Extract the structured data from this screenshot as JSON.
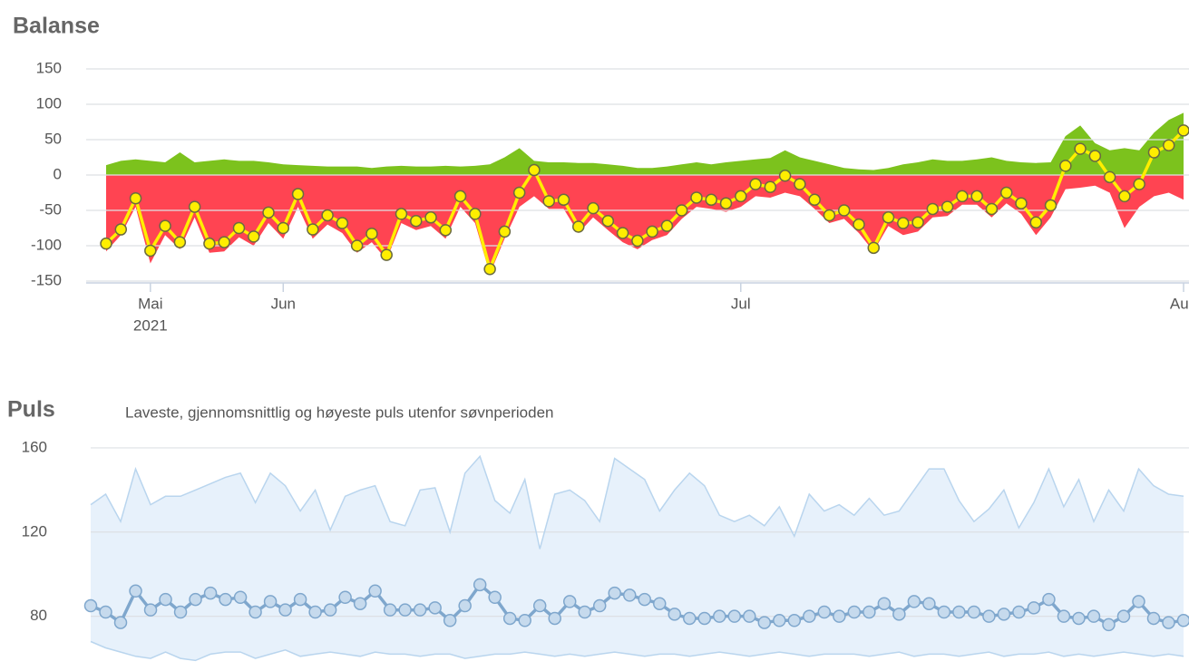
{
  "chart_data": [
    {
      "type": "area_line",
      "title": "Balanse",
      "categories": [
        null,
        null,
        null,
        "Mai",
        null,
        null,
        null,
        null,
        null,
        null,
        null,
        null,
        "Jun",
        null,
        null,
        null,
        null,
        null,
        null,
        null,
        null,
        null,
        null,
        null,
        null,
        null,
        null,
        null,
        null,
        null,
        null,
        null,
        null,
        null,
        null,
        null,
        null,
        null,
        null,
        null,
        null,
        null,
        null,
        "Jul",
        null,
        null,
        null,
        null,
        null,
        null,
        null,
        null,
        null,
        null,
        null,
        null,
        null,
        null,
        null,
        null,
        null,
        null,
        null,
        null,
        null,
        null,
        null,
        null,
        null,
        null,
        null,
        null,
        null,
        "Aug"
      ],
      "year_label": "2021",
      "ylim": [
        -150,
        150
      ],
      "yticks": [
        150,
        100,
        50,
        0,
        -50,
        -100,
        -150
      ],
      "grid": true,
      "areas": [
        {
          "color": "#7cc21d",
          "values": [
            14,
            20,
            22,
            20,
            18,
            32,
            18,
            20,
            22,
            20,
            20,
            18,
            15,
            14,
            13,
            12,
            12,
            12,
            10,
            12,
            13,
            12,
            12,
            13,
            12,
            13,
            15,
            25,
            38,
            20,
            18,
            18,
            17,
            17,
            15,
            13,
            10,
            10,
            12,
            15,
            18,
            15,
            18,
            20,
            22,
            24,
            35,
            25,
            20,
            15,
            10,
            8,
            7,
            10,
            15,
            18,
            22,
            20,
            20,
            22,
            25,
            20,
            18,
            17,
            18,
            55,
            70,
            45,
            35,
            38,
            35,
            60,
            78,
            88
          ]
        },
        {
          "color": "#ff4452",
          "values": [
            -108,
            -85,
            -45,
            -125,
            -85,
            -105,
            -60,
            -110,
            -108,
            -88,
            -100,
            -68,
            -90,
            -45,
            -90,
            -70,
            -82,
            -110,
            -95,
            -120,
            -68,
            -78,
            -72,
            -90,
            -45,
            -68,
            -140,
            -90,
            -45,
            -30,
            -48,
            -48,
            -82,
            -60,
            -78,
            -95,
            -105,
            -92,
            -85,
            -62,
            -45,
            -48,
            -52,
            -45,
            -30,
            -32,
            -25,
            -30,
            -48,
            -68,
            -62,
            -82,
            -108,
            -72,
            -85,
            -80,
            -60,
            -58,
            -42,
            -42,
            -60,
            -40,
            -55,
            -85,
            -60,
            -20,
            -18,
            -15,
            -25,
            -75,
            -45,
            -30,
            -25,
            -35
          ]
        }
      ],
      "series": [
        {
          "color": "#ffee00",
          "values": [
            -97,
            -77,
            -33,
            -107,
            -72,
            -95,
            -45,
            -97,
            -95,
            -75,
            -87,
            -53,
            -75,
            -27,
            -77,
            -57,
            -68,
            -100,
            -83,
            -113,
            -55,
            -65,
            -60,
            -78,
            -30,
            -55,
            -133,
            -80,
            -25,
            7,
            -37,
            -35,
            -73,
            -47,
            -65,
            -82,
            -93,
            -80,
            -72,
            -50,
            -32,
            -35,
            -40,
            -30,
            -13,
            -17,
            -1,
            -13,
            -35,
            -57,
            -50,
            -70,
            -103,
            -60,
            -68,
            -67,
            -48,
            -45,
            -30,
            -30,
            -48,
            -25,
            -40,
            -67,
            -43,
            13,
            37,
            27,
            -3,
            -30,
            -13,
            32,
            42,
            63
          ]
        }
      ]
    },
    {
      "type": "range_line",
      "title": "Puls",
      "subtitle": "Laveste, gjennomsnittlig og høyeste puls utenfor søvnperioden",
      "ylim": [
        54,
        166
      ],
      "yticks": [
        160,
        120,
        80
      ],
      "grid": true,
      "range": {
        "color": "#e7f1fb",
        "edge_color": "#b9d5ee",
        "high": [
          133,
          138,
          125,
          150,
          133,
          137,
          137,
          140,
          143,
          146,
          148,
          134,
          148,
          142,
          130,
          140,
          121,
          137,
          140,
          142,
          125,
          123,
          140,
          141,
          120,
          148,
          156,
          135,
          129,
          145,
          112,
          138,
          140,
          135,
          125,
          155,
          150,
          145,
          130,
          140,
          148,
          142,
          128,
          125,
          128,
          123,
          132,
          118,
          138,
          130,
          133,
          128,
          136,
          128,
          130,
          140,
          150,
          150,
          135,
          125,
          131,
          140,
          122,
          134,
          150,
          132,
          145,
          125,
          140,
          130,
          150,
          142,
          138,
          137
        ],
        "low": [
          68,
          65,
          63,
          61,
          60,
          63,
          60,
          59,
          62,
          63,
          63,
          60,
          62,
          64,
          61,
          62,
          63,
          62,
          61,
          63,
          62,
          62,
          61,
          62,
          62,
          60,
          61,
          62,
          62,
          63,
          62,
          61,
          62,
          61,
          62,
          63,
          62,
          61,
          62,
          62,
          61,
          62,
          63,
          62,
          61,
          62,
          63,
          62,
          61,
          62,
          62,
          62,
          61,
          62,
          63,
          61,
          62,
          62,
          61,
          62,
          63,
          61,
          62,
          62,
          63,
          61,
          62,
          61,
          62,
          63,
          62,
          61,
          62,
          61
        ]
      },
      "series": [
        {
          "color": "#7fa7cd",
          "marker_fill": "#c6daed",
          "values": [
            85,
            82,
            77,
            92,
            83,
            88,
            82,
            88,
            91,
            88,
            89,
            82,
            87,
            83,
            88,
            82,
            83,
            89,
            86,
            92,
            83,
            83,
            83,
            84,
            78,
            85,
            95,
            89,
            79,
            78,
            85,
            79,
            87,
            82,
            85,
            91,
            90,
            88,
            86,
            81,
            79,
            79,
            80,
            80,
            80,
            77,
            78,
            78,
            80,
            82,
            80,
            82,
            82,
            86,
            81,
            87,
            86,
            82,
            82,
            82,
            80,
            81,
            82,
            84,
            88,
            80,
            79,
            80,
            76,
            80,
            87,
            79,
            77,
            78
          ]
        }
      ]
    }
  ]
}
